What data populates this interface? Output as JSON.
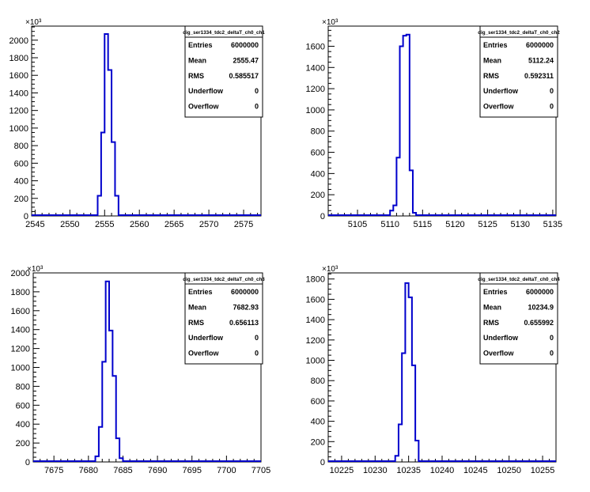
{
  "chart_data": [
    {
      "type": "histogram",
      "title": "",
      "xlabel": "",
      "ylabel": "",
      "y_exponent_label": "×10³",
      "xlim": [
        2544.5,
        2577.5
      ],
      "ylim": [
        0,
        2160
      ],
      "xticks": [
        2545,
        2550,
        2555,
        2560,
        2565,
        2570,
        2575
      ],
      "yticks": [
        0,
        200,
        400,
        600,
        800,
        1000,
        1200,
        1400,
        1600,
        1800,
        2000
      ],
      "bins_edges": [
        2554.0,
        2554.5,
        2555.0,
        2555.5,
        2556.0,
        2556.5,
        2557.0
      ],
      "counts": [
        230,
        950,
        2070,
        1660,
        840,
        230
      ],
      "stats": {
        "name": "dig_ser1334_tdc2_deltaT_ch0_ch1",
        "rows": [
          {
            "label": "Entries",
            "value": "6000000"
          },
          {
            "label": "Mean",
            "value": "2555.47"
          },
          {
            "label": "RMS",
            "value": "0.585517"
          },
          {
            "label": "Underflow",
            "value": "0"
          },
          {
            "label": "Overflow",
            "value": "0"
          }
        ]
      },
      "line_color": "#0000cc"
    },
    {
      "type": "histogram",
      "title": "",
      "xlabel": "",
      "ylabel": "",
      "y_exponent_label": "×10³",
      "xlim": [
        5100.5,
        5135.5
      ],
      "ylim": [
        0,
        1790
      ],
      "xticks": [
        5105,
        5110,
        5115,
        5120,
        5125,
        5130,
        5135
      ],
      "yticks": [
        0,
        200,
        400,
        600,
        800,
        1000,
        1200,
        1400,
        1600
      ],
      "bins_edges": [
        5110.0,
        5110.5,
        5111.0,
        5111.5,
        5112.0,
        5112.5,
        5113.0,
        5113.5,
        5114.0
      ],
      "counts": [
        50,
        100,
        550,
        1600,
        1700,
        1710,
        430,
        30
      ],
      "stats": {
        "name": "dig_ser1334_tdc2_deltaT_ch0_ch2",
        "rows": [
          {
            "label": "Entries",
            "value": "6000000"
          },
          {
            "label": "Mean",
            "value": "5112.24"
          },
          {
            "label": "RMS",
            "value": "0.592311"
          },
          {
            "label": "Underflow",
            "value": "0"
          },
          {
            "label": "Overflow",
            "value": "0"
          }
        ]
      },
      "line_color": "#0000cc"
    },
    {
      "type": "histogram",
      "title": "",
      "xlabel": "",
      "ylabel": "",
      "y_exponent_label": "×10³",
      "xlim": [
        7672,
        7705
      ],
      "ylim": [
        0,
        2000
      ],
      "xticks": [
        7675,
        7680,
        7685,
        7690,
        7695,
        7700,
        7705
      ],
      "yticks": [
        0,
        200,
        400,
        600,
        800,
        1000,
        1200,
        1400,
        1600,
        1800,
        2000
      ],
      "bins_edges": [
        7681.0,
        7681.5,
        7682.0,
        7682.5,
        7683.0,
        7683.5,
        7684.0,
        7684.5,
        7685.0
      ],
      "counts": [
        60,
        370,
        1060,
        1910,
        1390,
        910,
        250,
        40
      ],
      "stats": {
        "name": "dig_ser1334_tdc2_deltaT_ch0_ch3",
        "rows": [
          {
            "label": "Entries",
            "value": "6000000"
          },
          {
            "label": "Mean",
            "value": "7682.93"
          },
          {
            "label": "RMS",
            "value": "0.656113"
          },
          {
            "label": "Underflow",
            "value": "0"
          },
          {
            "label": "Overflow",
            "value": "0"
          }
        ]
      },
      "line_color": "#0000cc"
    },
    {
      "type": "histogram",
      "title": "",
      "xlabel": "",
      "ylabel": "",
      "y_exponent_label": "×10³",
      "xlim": [
        10223,
        10257
      ],
      "ylim": [
        0,
        1860
      ],
      "xticks": [
        10225,
        10230,
        10235,
        10240,
        10245,
        10250,
        10255
      ],
      "yticks": [
        0,
        200,
        400,
        600,
        800,
        1000,
        1200,
        1400,
        1600,
        1800
      ],
      "bins_edges": [
        10233.0,
        10233.5,
        10234.0,
        10234.5,
        10235.0,
        10235.5,
        10236.0,
        10236.5
      ],
      "counts": [
        60,
        370,
        1070,
        1760,
        1620,
        950,
        210
      ],
      "stats": {
        "name": "dig_ser1334_tdc2_deltaT_ch0_ch4",
        "rows": [
          {
            "label": "Entries",
            "value": "6000000"
          },
          {
            "label": "Mean",
            "value": "10234.9"
          },
          {
            "label": "RMS",
            "value": "0.655992"
          },
          {
            "label": "Underflow",
            "value": "0"
          },
          {
            "label": "Overflow",
            "value": "0"
          }
        ]
      },
      "line_color": "#0000cc"
    }
  ]
}
